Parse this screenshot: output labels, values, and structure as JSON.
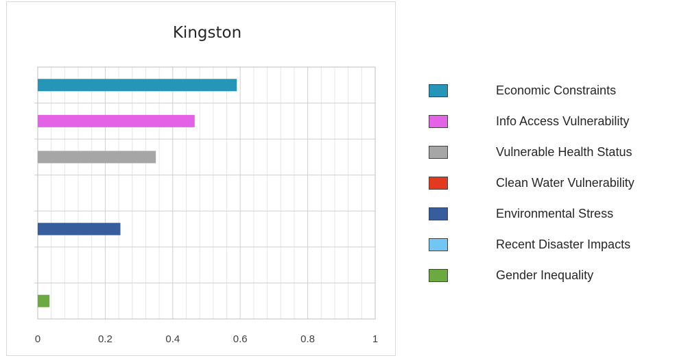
{
  "chart_data": {
    "type": "bar",
    "orientation": "horizontal",
    "title": "Kingston",
    "xlabel": "",
    "ylabel": "",
    "xlim": [
      0,
      1
    ],
    "x_ticks": [
      "0",
      "0.2",
      "0.4",
      "0.6",
      "0.8",
      "1"
    ],
    "grid": true,
    "legend_position": "right",
    "categories": [
      "Economic Constraints",
      "Info Access Vulnerability",
      "Vulnerable Health Status",
      "Clean Water Vulnerability",
      "Environmental Stress",
      "Recent Disaster Impacts",
      "Gender Inequality"
    ],
    "values": [
      0.59,
      0.465,
      0.35,
      0,
      0.245,
      0,
      0.035
    ],
    "colors": [
      "#2596b8",
      "#e462e6",
      "#a6a6a6",
      "#e3391e",
      "#365e9c",
      "#72c6f4",
      "#6aaa41"
    ]
  },
  "legend": {
    "items": [
      {
        "label": "Economic Constraints",
        "color": "#2596b8"
      },
      {
        "label": "Info Access Vulnerability",
        "color": "#e462e6"
      },
      {
        "label": "Vulnerable Health Status",
        "color": "#a6a6a6"
      },
      {
        "label": "Clean Water Vulnerability",
        "color": "#e3391e"
      },
      {
        "label": "Environmental Stress",
        "color": "#365e9c"
      },
      {
        "label": "Recent Disaster Impacts",
        "color": "#72c6f4"
      },
      {
        "label": "Gender Inequality",
        "color": "#6aaa41"
      }
    ]
  }
}
